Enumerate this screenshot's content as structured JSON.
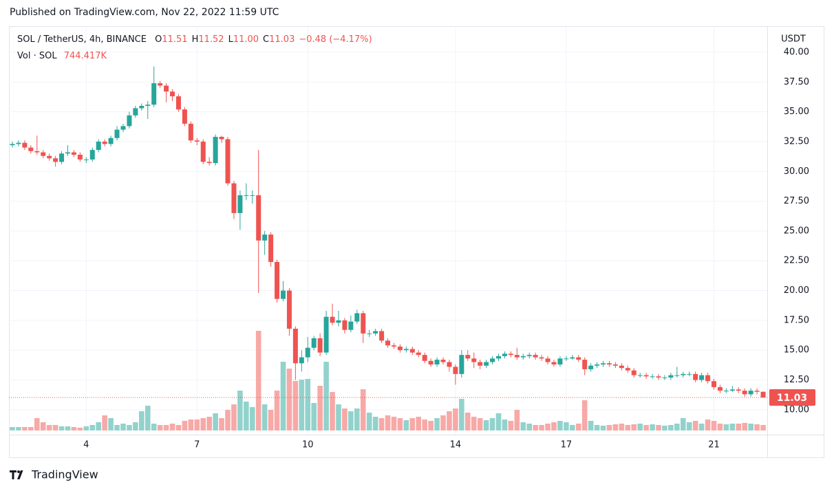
{
  "published": "Published on TradingView.com, Nov 22, 2022 11:59 UTC",
  "brand": "TradingView",
  "chart_data": {
    "type": "candlestick",
    "title": "SOL / TetherUS, 4h, BINANCE",
    "legend": [
      {
        "key": "O",
        "value": "11.51"
      },
      {
        "key": "H",
        "value": "11.52"
      },
      {
        "key": "L",
        "value": "11.00"
      },
      {
        "key": "C",
        "value": "11.03"
      }
    ],
    "change": "−0.48 (−4.17%)",
    "volume_title": "Vol · SOL",
    "volume_label": "744.417K",
    "y_axis_label": "USDT",
    "last_price_label": "11.03",
    "up_color": "#26a69a",
    "down_color": "#ef5350",
    "volume_up_color": "#92d2cc",
    "volume_down_color": "#f7a9a7",
    "grid": true,
    "ylim": [
      8.26,
      42.19
    ],
    "yticks": [
      {
        "value": 10,
        "label": "10.00"
      },
      {
        "value": 12.5,
        "label": "12.50"
      },
      {
        "value": 15,
        "label": "15.00"
      },
      {
        "value": 17.5,
        "label": "17.50"
      },
      {
        "value": 20,
        "label": "20.00"
      },
      {
        "value": 22.5,
        "label": "22.50"
      },
      {
        "value": 25,
        "label": "25.00"
      },
      {
        "value": 27.5,
        "label": "27.50"
      },
      {
        "value": 30,
        "label": "30.00"
      },
      {
        "value": 32.5,
        "label": "32.50"
      },
      {
        "value": 35,
        "label": "35.00"
      },
      {
        "value": 37.5,
        "label": "37.50"
      },
      {
        "value": 40,
        "label": "40.00"
      }
    ],
    "volume_lim": [
      0,
      55000000
    ],
    "categories": [
      null,
      null,
      null,
      null,
      null,
      null,
      null,
      null,
      null,
      null,
      null,
      null,
      "4",
      null,
      null,
      null,
      null,
      null,
      null,
      null,
      null,
      null,
      null,
      null,
      null,
      null,
      null,
      null,
      null,
      null,
      "7",
      null,
      null,
      null,
      null,
      null,
      null,
      null,
      null,
      null,
      null,
      null,
      null,
      null,
      null,
      null,
      null,
      null,
      "10",
      null,
      null,
      null,
      null,
      null,
      null,
      null,
      null,
      null,
      null,
      null,
      null,
      null,
      null,
      null,
      null,
      null,
      null,
      null,
      null,
      null,
      null,
      null,
      "14",
      null,
      null,
      null,
      null,
      null,
      null,
      null,
      null,
      null,
      null,
      null,
      null,
      null,
      null,
      null,
      null,
      null,
      "17",
      null,
      null,
      null,
      null,
      null,
      null,
      null,
      null,
      null,
      null,
      null,
      null,
      null,
      null,
      null,
      null,
      null,
      null,
      null,
      null,
      null,
      null,
      null,
      "21",
      null,
      null,
      null,
      null,
      null,
      null,
      null,
      null
    ],
    "open": [
      32.2,
      32.3,
      32.4,
      32.0,
      31.7,
      31.6,
      31.3,
      31.1,
      30.8,
      31.5,
      31.6,
      31.4,
      31.0,
      31.0,
      31.8,
      32.5,
      32.3,
      32.8,
      33.5,
      33.8,
      34.7,
      35.3,
      35.5,
      35.6,
      37.4,
      37.2,
      36.7,
      36.3,
      35.2,
      34.0,
      32.6,
      32.5,
      30.8,
      30.7,
      32.9,
      32.7,
      29.0,
      26.5,
      28.0,
      28.0,
      28.0,
      24.2,
      24.7,
      22.4,
      19.3,
      20.0,
      16.8,
      13.9,
      14.4,
      15.2,
      16.0,
      14.8,
      17.8,
      17.3,
      17.5,
      16.7,
      17.4,
      18.1,
      16.4,
      16.4,
      16.6,
      15.8,
      15.4,
      15.3,
      15.0,
      15.1,
      14.8,
      14.6,
      14.1,
      13.8,
      14.2,
      14.0,
      13.6,
      13.0,
      14.6,
      14.3,
      14.0,
      13.7,
      14.0,
      14.3,
      14.5,
      14.7,
      14.6,
      14.4,
      14.5,
      14.6,
      14.4,
      14.3,
      14.0,
      13.8,
      14.3,
      14.3,
      14.4,
      14.2,
      13.4,
      13.7,
      13.8,
      13.9,
      13.8,
      13.7,
      13.5,
      13.3,
      12.9,
      12.9,
      12.8,
      12.8,
      12.7,
      12.7,
      12.9,
      12.9,
      13.0,
      13.0,
      12.5,
      12.9,
      12.4,
      11.9,
      11.6,
      11.6,
      11.7,
      11.6,
      11.3,
      11.6,
      11.51
    ],
    "high": [
      32.5,
      32.6,
      32.6,
      32.2,
      33.0,
      31.8,
      31.5,
      31.3,
      31.7,
      32.2,
      31.8,
      31.6,
      31.2,
      32.0,
      32.7,
      32.7,
      33.0,
      33.8,
      34.0,
      35.0,
      35.5,
      35.7,
      35.9,
      38.8,
      37.6,
      37.4,
      36.9,
      36.5,
      35.4,
      34.2,
      32.8,
      32.7,
      31.2,
      33.1,
      33.0,
      32.9,
      29.2,
      28.4,
      29.0,
      28.4,
      31.8,
      25.0,
      24.9,
      22.6,
      20.8,
      20.2,
      17.0,
      15.0,
      16.1,
      16.2,
      16.4,
      18.3,
      18.9,
      18.3,
      17.7,
      17.9,
      18.4,
      18.3,
      16.7,
      16.8,
      16.8,
      16.0,
      15.6,
      15.5,
      15.3,
      15.3,
      15.0,
      14.8,
      14.3,
      14.4,
      14.4,
      14.2,
      13.8,
      15.0,
      15.0,
      14.8,
      14.2,
      14.2,
      14.5,
      14.7,
      14.9,
      14.9,
      15.2,
      14.7,
      14.8,
      14.8,
      14.6,
      14.5,
      14.2,
      14.5,
      14.5,
      14.6,
      14.6,
      14.4,
      13.9,
      14.0,
      14.1,
      14.1,
      14.0,
      13.9,
      13.7,
      13.5,
      13.1,
      13.1,
      13.0,
      13.0,
      12.9,
      13.1,
      13.6,
      13.2,
      13.2,
      13.2,
      13.1,
      13.1,
      12.6,
      12.1,
      11.8,
      12.0,
      11.9,
      11.8,
      11.8,
      11.8,
      11.52
    ],
    "low": [
      32.0,
      32.1,
      31.8,
      31.5,
      31.4,
      31.1,
      30.9,
      30.4,
      30.6,
      31.3,
      31.2,
      30.8,
      30.7,
      30.8,
      31.6,
      32.1,
      32.1,
      32.6,
      33.3,
      33.6,
      34.5,
      35.1,
      34.4,
      35.4,
      37.0,
      35.8,
      35.9,
      35.0,
      33.8,
      32.4,
      32.2,
      30.6,
      30.5,
      30.5,
      32.4,
      28.8,
      26.0,
      25.1,
      27.6,
      27.3,
      19.8,
      23.0,
      22.0,
      19.0,
      19.1,
      16.2,
      12.5,
      13.2,
      14.0,
      15.0,
      14.5,
      14.6,
      17.1,
      17.0,
      16.4,
      16.5,
      17.2,
      15.6,
      16.1,
      16.2,
      15.6,
      15.2,
      15.1,
      14.8,
      14.8,
      14.6,
      14.4,
      13.9,
      13.6,
      13.6,
      13.8,
      13.2,
      12.1,
      12.7,
      14.1,
      13.5,
      13.4,
      13.5,
      13.8,
      14.1,
      14.3,
      14.4,
      14.2,
      14.2,
      14.3,
      14.2,
      14.1,
      13.8,
      13.6,
      13.6,
      14.1,
      14.2,
      14.0,
      12.9,
      13.2,
      13.5,
      13.6,
      13.6,
      13.5,
      13.3,
      13.1,
      12.7,
      12.7,
      12.6,
      12.6,
      12.5,
      12.5,
      12.5,
      12.7,
      12.7,
      12.8,
      12.3,
      12.3,
      12.2,
      11.7,
      11.4,
      11.4,
      11.5,
      11.4,
      11.1,
      11.1,
      11.3,
      11.0
    ],
    "close": [
      32.3,
      32.4,
      32.0,
      31.7,
      31.6,
      31.3,
      31.1,
      30.8,
      31.5,
      31.6,
      31.4,
      31.0,
      31.0,
      31.8,
      32.5,
      32.3,
      32.8,
      33.5,
      33.8,
      34.7,
      35.3,
      35.5,
      35.6,
      37.4,
      37.2,
      36.7,
      36.3,
      35.2,
      34.0,
      32.6,
      32.5,
      30.8,
      30.7,
      32.9,
      32.7,
      29.0,
      26.5,
      28.0,
      28.0,
      28.0,
      24.2,
      24.7,
      22.4,
      19.3,
      20.0,
      16.8,
      13.9,
      14.4,
      15.2,
      16.0,
      14.8,
      17.8,
      17.3,
      17.5,
      16.7,
      17.4,
      18.1,
      16.4,
      16.4,
      16.6,
      15.8,
      15.4,
      15.3,
      15.0,
      15.1,
      14.8,
      14.6,
      14.1,
      13.8,
      14.2,
      14.0,
      13.6,
      13.0,
      14.6,
      14.3,
      14.0,
      13.7,
      14.0,
      14.3,
      14.5,
      14.7,
      14.6,
      14.4,
      14.5,
      14.6,
      14.4,
      14.3,
      14.0,
      13.8,
      14.3,
      14.3,
      14.4,
      14.2,
      13.4,
      13.7,
      13.8,
      13.9,
      13.8,
      13.7,
      13.5,
      13.3,
      12.9,
      12.9,
      12.8,
      12.8,
      12.7,
      12.7,
      12.9,
      12.9,
      13.0,
      13.0,
      12.5,
      12.9,
      12.4,
      11.9,
      11.6,
      11.6,
      11.7,
      11.6,
      11.3,
      11.6,
      11.51,
      11.03
    ],
    "volume": [
      467500,
      467500,
      467500,
      467500,
      1683000,
      1122000,
      748000,
      748000,
      561000,
      561000,
      467500,
      374000,
      561000,
      748000,
      1122000,
      2057000,
      1683000,
      748000,
      935000,
      748000,
      1122000,
      2618000,
      3366000,
      935000,
      748000,
      748000,
      935000,
      748000,
      1309000,
      1496000,
      1496000,
      1683000,
      1870000,
      2337500,
      1683000,
      2805000,
      3553000,
      5423000,
      3927000,
      3179000,
      13557500,
      3553000,
      2805000,
      5423000,
      9350000,
      8415000,
      6732000,
      6919000,
      7012500,
      3740000,
      6077500,
      9350000,
      5236000,
      3553000,
      2992000,
      2618000,
      2992000,
      5610000,
      2431000,
      1870000,
      1683000,
      2057000,
      1870000,
      1683000,
      1402500,
      1683000,
      1870000,
      1496000,
      1309000,
      1683000,
      2057000,
      2618000,
      2992000,
      4301000,
      2431000,
      1870000,
      1683000,
      1402500,
      1683000,
      2337500,
      1496000,
      1309000,
      2805000,
      1122000,
      935000,
      748000,
      748000,
      935000,
      1122000,
      1309000,
      1122000,
      748000,
      935000,
      4114000,
      1309000,
      748000,
      654500,
      748000,
      841500,
      935000,
      748000,
      841500,
      935000,
      748000,
      841500,
      748000,
      654500,
      748000,
      935000,
      1683000,
      1122000,
      1309000,
      935000,
      1496000,
      1309000,
      935000,
      841500,
      935000,
      935000,
      1028500,
      935000,
      841500,
      744417
    ]
  }
}
